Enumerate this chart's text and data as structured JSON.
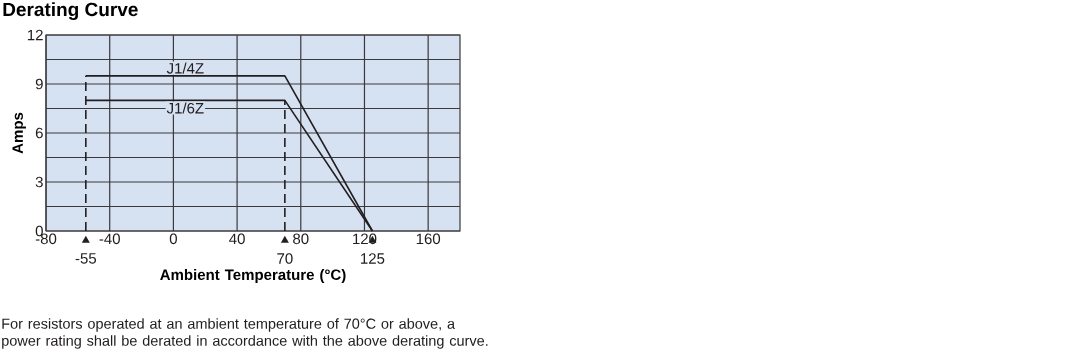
{
  "chart_data": {
    "type": "line",
    "title": "Derating Curve",
    "xlabel": "Ambient Temperature (°C)",
    "ylabel": "Amps",
    "xlim": [
      -80,
      180
    ],
    "xticks": [
      -80,
      -40,
      0,
      40,
      80,
      120,
      160
    ],
    "ylim": [
      0,
      12
    ],
    "yticks": [
      0,
      {
        "value": 1.5,
        "label": null
      },
      3,
      {
        "value": 4.5,
        "label": null
      },
      6,
      {
        "value": 7.5,
        "label": null
      },
      9,
      {
        "value": 10.5,
        "label": null
      },
      12
    ],
    "grid": true,
    "marker": "none",
    "legend": false,
    "series": [
      {
        "name": "J1/4Z",
        "color": "#231f20",
        "x": [
          -55,
          70,
          125
        ],
        "values": [
          9.5,
          9.5,
          0
        ],
        "line_style": "solid"
      },
      {
        "name": "J1/6Z",
        "color": "#231f20",
        "x": [
          -55,
          70,
          125
        ],
        "values": [
          8,
          8,
          0
        ],
        "line_style": "solid"
      },
      {
        "color": "#231f20",
        "x": [
          -55,
          -55
        ],
        "values": [
          0,
          9.5
        ],
        "line_style": "dashed"
      },
      {
        "color": "#231f20",
        "x": [
          70,
          70
        ],
        "values": [
          0,
          8
        ],
        "line_style": "dashed"
      }
    ],
    "annotations": [
      {
        "text": "-55",
        "x": -55,
        "y": 0
      },
      {
        "text": "70",
        "x": 70,
        "y": 0
      },
      {
        "text": "125",
        "x": 125,
        "y": 0
      },
      "For resistors operated at an ambient temperature of 70°C or above, a power rating shall be derated in accordance with the above derating curve."
    ]
  }
}
